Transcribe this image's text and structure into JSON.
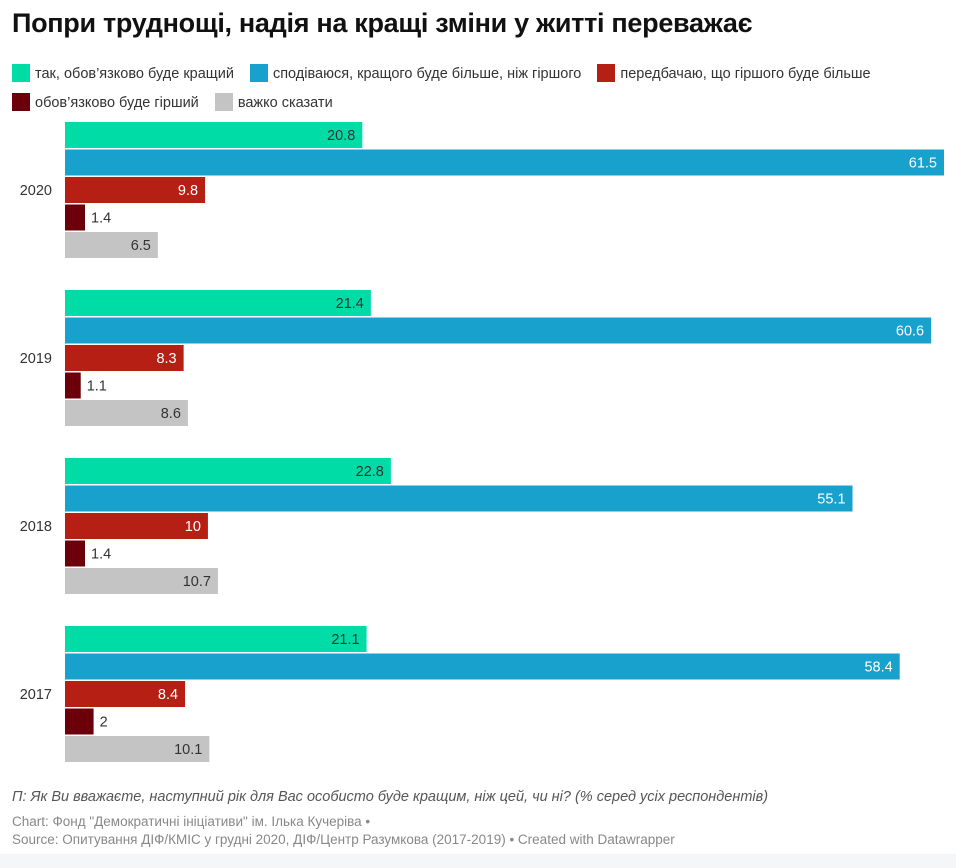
{
  "title": "Попри труднощі, надія на кращі зміни у житті переважає",
  "legend": [
    {
      "label": "так, обов’язково буде кращий",
      "color": "#00dca6"
    },
    {
      "label": "сподіваюся, кращого буде більше, ніж гіршого",
      "color": "#18a1cd"
    },
    {
      "label": "передбачаю, що гіршого буде більше",
      "color": "#b51f14"
    },
    {
      "label": "обов’язково буде гірший",
      "color": "#6b000b"
    },
    {
      "label": "важко сказати",
      "color": "#c4c4c4"
    }
  ],
  "note": "П: Як Ви вважаєте, наступний рік для Вас особисто буде кращим, ніж цей, чи ні? (% серед усіх респондентів)",
  "credit_line1": "Chart: Фонд \"Демократичні ініціативи\" ім. Ілька Кучеріва •",
  "credit_line2": "Source: Опитування ДІФ/КМІС у грудні 2020, ДІФ/Центр Разумкова (2017-2019) • Created with Datawrapper",
  "chart_data": {
    "type": "bar",
    "orientation": "horizontal-grouped",
    "title": "Попри труднощі, надія на кращі зміни у житті переважає",
    "categories": [
      "2020",
      "2019",
      "2018",
      "2017"
    ],
    "xlim": [
      0,
      61.5
    ],
    "series": [
      {
        "name": "так, обов’язково буде кращий",
        "values": [
          20.8,
          21.4,
          22.8,
          21.1
        ]
      },
      {
        "name": "сподіваюся, кращого буде більше, ніж гіршого",
        "values": [
          61.5,
          60.6,
          55.1,
          58.4
        ]
      },
      {
        "name": "передбачаю, що гіршого буде більше",
        "values": [
          9.8,
          8.3,
          10,
          8.4
        ]
      },
      {
        "name": "обов’язково буде гірший",
        "values": [
          1.4,
          1.1,
          1.4,
          2
        ]
      },
      {
        "name": "важко сказати",
        "values": [
          6.5,
          8.6,
          10.7,
          10.1
        ]
      }
    ],
    "legend_position": "top"
  }
}
